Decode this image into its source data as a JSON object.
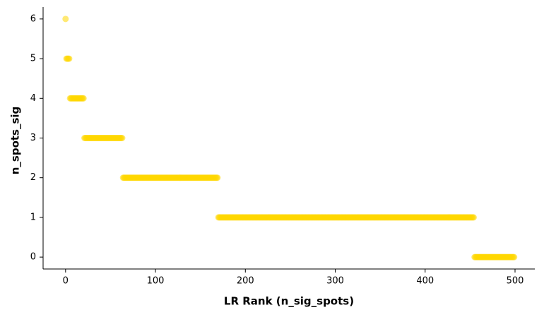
{
  "chart_data": {
    "type": "scatter",
    "x_label": "LR Rank (n_sig_spots)",
    "y_label": "n_spots_sig",
    "color": "#ffd700",
    "opacity": 0.55,
    "xlim": [
      -25,
      522
    ],
    "ylim": [
      -0.3,
      6.3
    ],
    "xticks": [
      0,
      100,
      200,
      300,
      400,
      500
    ],
    "yticks": [
      0,
      1,
      2,
      3,
      4,
      5,
      6
    ],
    "x": [
      0,
      1,
      2,
      3,
      4,
      5,
      6,
      7,
      8,
      9,
      10,
      11,
      12,
      13,
      14,
      15,
      16,
      17,
      18,
      19,
      20,
      21,
      22,
      23,
      24,
      25,
      26,
      27,
      28,
      29,
      30,
      31,
      32,
      33,
      34,
      35,
      36,
      37,
      38,
      39,
      40,
      41,
      42,
      43,
      44,
      45,
      46,
      47,
      48,
      49,
      50,
      51,
      52,
      53,
      54,
      55,
      56,
      57,
      58,
      59,
      60,
      61,
      62,
      63,
      64,
      65,
      66,
      67,
      68,
      69,
      70,
      71,
      72,
      73,
      74,
      75,
      76,
      77,
      78,
      79,
      80,
      81,
      82,
      83,
      84,
      85,
      86,
      87,
      88,
      89,
      90,
      91,
      92,
      93,
      94,
      95,
      96,
      97,
      98,
      99,
      100,
      101,
      102,
      103,
      104,
      105,
      106,
      107,
      108,
      109,
      110,
      111,
      112,
      113,
      114,
      115,
      116,
      117,
      118,
      119,
      120,
      121,
      122,
      123,
      124,
      125,
      126,
      127,
      128,
      129,
      130,
      131,
      132,
      133,
      134,
      135,
      136,
      137,
      138,
      139,
      140,
      141,
      142,
      143,
      144,
      145,
      146,
      147,
      148,
      149,
      150,
      151,
      152,
      153,
      154,
      155,
      156,
      157,
      158,
      159,
      160,
      161,
      162,
      163,
      164,
      165,
      166,
      167,
      168,
      169,
      170,
      171,
      172,
      173,
      174,
      175,
      176,
      177,
      178,
      179,
      180,
      181,
      182,
      183,
      184,
      185,
      186,
      187,
      188,
      189,
      190,
      191,
      192,
      193,
      194,
      195,
      196,
      197,
      198,
      199,
      200,
      201,
      202,
      203,
      204,
      205,
      206,
      207,
      208,
      209,
      210,
      211,
      212,
      213,
      214,
      215,
      216,
      217,
      218,
      219,
      220,
      221,
      222,
      223,
      224,
      225,
      226,
      227,
      228,
      229,
      230,
      231,
      232,
      233,
      234,
      235,
      236,
      237,
      238,
      239,
      240,
      241,
      242,
      243,
      244,
      245,
      246,
      247,
      248,
      249,
      250,
      251,
      252,
      253,
      254,
      255,
      256,
      257,
      258,
      259,
      260,
      261,
      262,
      263,
      264,
      265,
      266,
      267,
      268,
      269,
      270,
      271,
      272,
      273,
      274,
      275,
      276,
      277,
      278,
      279,
      280,
      281,
      282,
      283,
      284,
      285,
      286,
      287,
      288,
      289,
      290,
      291,
      292,
      293,
      294,
      295,
      296,
      297,
      298,
      299,
      300,
      301,
      302,
      303,
      304,
      305,
      306,
      307,
      308,
      309,
      310,
      311,
      312,
      313,
      314,
      315,
      316,
      317,
      318,
      319,
      320,
      321,
      322,
      323,
      324,
      325,
      326,
      327,
      328,
      329,
      330,
      331,
      332,
      333,
      334,
      335,
      336,
      337,
      338,
      339,
      340,
      341,
      342,
      343,
      344,
      345,
      346,
      347,
      348,
      349,
      350,
      351,
      352,
      353,
      354,
      355,
      356,
      357,
      358,
      359,
      360,
      361,
      362,
      363,
      364,
      365,
      366,
      367,
      368,
      369,
      370,
      371,
      372,
      373,
      374,
      375,
      376,
      377,
      378,
      379,
      380,
      381,
      382,
      383,
      384,
      385,
      386,
      387,
      388,
      389,
      390,
      391,
      392,
      393,
      394,
      395,
      396,
      397,
      398,
      399,
      400,
      401,
      402,
      403,
      404,
      405,
      406,
      407,
      408,
      409,
      410,
      411,
      412,
      413,
      414,
      415,
      416,
      417,
      418,
      419,
      420,
      421,
      422,
      423,
      424,
      425,
      426,
      427,
      428,
      429,
      430,
      431,
      432,
      433,
      434,
      435,
      436,
      437,
      438,
      439,
      440,
      441,
      442,
      443,
      444,
      445,
      446,
      447,
      448,
      449,
      450,
      451,
      452,
      453,
      454,
      455,
      456,
      457,
      458,
      459,
      460,
      461,
      462,
      463,
      464,
      465,
      466,
      467,
      468,
      469,
      470,
      471,
      472,
      473,
      474,
      475,
      476,
      477,
      478,
      479,
      480,
      481,
      482,
      483,
      484,
      485,
      486,
      487,
      488,
      489,
      490,
      491,
      492,
      493,
      494,
      495,
      496,
      497,
      498,
      499
    ],
    "values": [
      6,
      5,
      5,
      5,
      5,
      4,
      4,
      4,
      4,
      4,
      4,
      4,
      4,
      4,
      4,
      4,
      4,
      4,
      4,
      4,
      4,
      3,
      3,
      3,
      3,
      3,
      3,
      3,
      3,
      3,
      3,
      3,
      3,
      3,
      3,
      3,
      3,
      3,
      3,
      3,
      3,
      3,
      3,
      3,
      3,
      3,
      3,
      3,
      3,
      3,
      3,
      3,
      3,
      3,
      3,
      3,
      3,
      3,
      3,
      3,
      3,
      3,
      3,
      3,
      2,
      2,
      2,
      2,
      2,
      2,
      2,
      2,
      2,
      2,
      2,
      2,
      2,
      2,
      2,
      2,
      2,
      2,
      2,
      2,
      2,
      2,
      2,
      2,
      2,
      2,
      2,
      2,
      2,
      2,
      2,
      2,
      2,
      2,
      2,
      2,
      2,
      2,
      2,
      2,
      2,
      2,
      2,
      2,
      2,
      2,
      2,
      2,
      2,
      2,
      2,
      2,
      2,
      2,
      2,
      2,
      2,
      2,
      2,
      2,
      2,
      2,
      2,
      2,
      2,
      2,
      2,
      2,
      2,
      2,
      2,
      2,
      2,
      2,
      2,
      2,
      2,
      2,
      2,
      2,
      2,
      2,
      2,
      2,
      2,
      2,
      2,
      2,
      2,
      2,
      2,
      2,
      2,
      2,
      2,
      2,
      2,
      2,
      2,
      2,
      2,
      2,
      2,
      2,
      2,
      2,
      1,
      1,
      1,
      1,
      1,
      1,
      1,
      1,
      1,
      1,
      1,
      1,
      1,
      1,
      1,
      1,
      1,
      1,
      1,
      1,
      1,
      1,
      1,
      1,
      1,
      1,
      1,
      1,
      1,
      1,
      1,
      1,
      1,
      1,
      1,
      1,
      1,
      1,
      1,
      1,
      1,
      1,
      1,
      1,
      1,
      1,
      1,
      1,
      1,
      1,
      1,
      1,
      1,
      1,
      1,
      1,
      1,
      1,
      1,
      1,
      1,
      1,
      1,
      1,
      1,
      1,
      1,
      1,
      1,
      1,
      1,
      1,
      1,
      1,
      1,
      1,
      1,
      1,
      1,
      1,
      1,
      1,
      1,
      1,
      1,
      1,
      1,
      1,
      1,
      1,
      1,
      1,
      1,
      1,
      1,
      1,
      1,
      1,
      1,
      1,
      1,
      1,
      1,
      1,
      1,
      1,
      1,
      1,
      1,
      1,
      1,
      1,
      1,
      1,
      1,
      1,
      1,
      1,
      1,
      1,
      1,
      1,
      1,
      1,
      1,
      1,
      1,
      1,
      1,
      1,
      1,
      1,
      1,
      1,
      1,
      1,
      1,
      1,
      1,
      1,
      1,
      1,
      1,
      1,
      1,
      1,
      1,
      1,
      1,
      1,
      1,
      1,
      1,
      1,
      1,
      1,
      1,
      1,
      1,
      1,
      1,
      1,
      1,
      1,
      1,
      1,
      1,
      1,
      1,
      1,
      1,
      1,
      1,
      1,
      1,
      1,
      1,
      1,
      1,
      1,
      1,
      1,
      1,
      1,
      1,
      1,
      1,
      1,
      1,
      1,
      1,
      1,
      1,
      1,
      1,
      1,
      1,
      1,
      1,
      1,
      1,
      1,
      1,
      1,
      1,
      1,
      1,
      1,
      1,
      1,
      1,
      1,
      1,
      1,
      1,
      1,
      1,
      1,
      1,
      1,
      1,
      1,
      1,
      1,
      1,
      1,
      1,
      1,
      1,
      1,
      1,
      1,
      1,
      1,
      1,
      1,
      1,
      1,
      1,
      1,
      1,
      1,
      1,
      1,
      1,
      1,
      1,
      1,
      1,
      1,
      1,
      1,
      1,
      1,
      1,
      1,
      1,
      1,
      1,
      1,
      1,
      1,
      1,
      1,
      1,
      1,
      1,
      1,
      1,
      1,
      1,
      1,
      1,
      1,
      1,
      1,
      1,
      1,
      1,
      1,
      1,
      1,
      1,
      1,
      1,
      0,
      0,
      0,
      0,
      0,
      0,
      0,
      0,
      0,
      0,
      0,
      0,
      0,
      0,
      0,
      0,
      0,
      0,
      0,
      0,
      0,
      0,
      0,
      0,
      0,
      0,
      0,
      0,
      0,
      0,
      0,
      0,
      0,
      0,
      0,
      0,
      0,
      0,
      0,
      0,
      0,
      0,
      0,
      0,
      0
    ]
  }
}
